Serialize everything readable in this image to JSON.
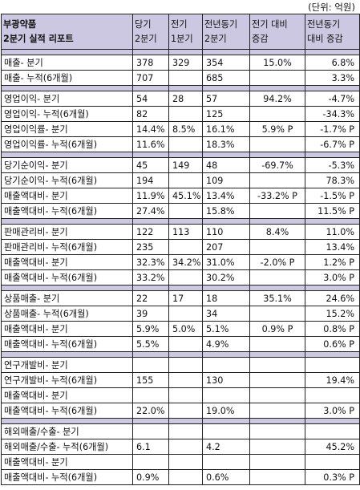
{
  "unit_label": "(단위: 억원)",
  "header": {
    "title_line1": "부광약품",
    "title_line2": "2분기 실적 리포트",
    "col_current_1": "당기",
    "col_current_2": "2분기",
    "col_prev_1": "전기",
    "col_prev_2": "1분기",
    "col_yoy_1": "전년동기",
    "col_yoy_2": "2분기",
    "col_qoq_1": "전기 대비",
    "col_qoq_2": "증감",
    "col_yoyc_1": "전년동기",
    "col_yoyc_2": "대비 증감"
  },
  "groups": [
    {
      "rows": [
        {
          "label": "매출- 분기",
          "cur": "378",
          "prev": "329",
          "yoy": "354",
          "qoq": "15.0%",
          "yoyc": "6.8%"
        },
        {
          "label": "매출- 누적(6개월)",
          "cur": "707",
          "prev": "",
          "yoy": "685",
          "qoq": "",
          "yoyc": "3.3%"
        }
      ]
    },
    {
      "rows": [
        {
          "label": "영업이익- 분기",
          "cur": "54",
          "prev": "28",
          "yoy": "57",
          "qoq": "94.2%",
          "yoyc": "-4.7%"
        },
        {
          "label": "영업이익- 누적(6개월)",
          "cur": "82",
          "prev": "",
          "yoy": "125",
          "qoq": "",
          "yoyc": "-34.3%"
        },
        {
          "label": "영업이익률- 분기",
          "cur": "14.4%",
          "prev": "8.5%",
          "yoy": "16.1%",
          "qoq": "5.9% P",
          "yoyc": "-1.7% P"
        },
        {
          "label": "영업이익률- 누적(6개월)",
          "cur": "11.6%",
          "prev": "",
          "yoy": "18.3%",
          "qoq": "",
          "yoyc": "-6.7% P"
        }
      ]
    },
    {
      "rows": [
        {
          "label": "당기순이익- 분기",
          "cur": "45",
          "prev": "149",
          "yoy": "48",
          "qoq": "-69.7%",
          "yoyc": "-5.3%"
        },
        {
          "label": "당기순이익- 누적(6개월)",
          "cur": "194",
          "prev": "",
          "yoy": "109",
          "qoq": "",
          "yoyc": "78.3%"
        },
        {
          "label": "매출액대비- 분기",
          "cur": "11.9%",
          "prev": "45.1%",
          "yoy": "13.4%",
          "qoq": "-33.2% P",
          "yoyc": "-1.5% P"
        },
        {
          "label": "매출액대비- 누적(6개월)",
          "cur": "27.4%",
          "prev": "",
          "yoy": "15.8%",
          "qoq": "",
          "yoyc": "11.5% P"
        }
      ]
    },
    {
      "rows": [
        {
          "label": "판매관리비- 분기",
          "cur": "122",
          "prev": "113",
          "yoy": "110",
          "qoq": "8.4%",
          "yoyc": "11.0%"
        },
        {
          "label": "판매관리비- 누적(6개월)",
          "cur": "235",
          "prev": "",
          "yoy": "207",
          "qoq": "",
          "yoyc": "13.4%"
        },
        {
          "label": "매출액대비- 분기",
          "cur": "32.3%",
          "prev": "34.2%",
          "yoy": "31.0%",
          "qoq": "-2.0% P",
          "yoyc": "1.2% P"
        },
        {
          "label": "매출액대비- 누적(6개월)",
          "cur": "33.2%",
          "prev": "",
          "yoy": "30.2%",
          "qoq": "",
          "yoyc": "3.0% P"
        }
      ]
    },
    {
      "rows": [
        {
          "label": "상품매출- 분기",
          "cur": "22",
          "prev": "17",
          "yoy": "18",
          "qoq": "35.1%",
          "yoyc": "24.6%"
        },
        {
          "label": "상품매출- 누적(6개월)",
          "cur": "39",
          "prev": "",
          "yoy": "34",
          "qoq": "",
          "yoyc": "15.2%"
        },
        {
          "label": "매출액대비- 분기",
          "cur": "5.9%",
          "prev": "5.0%",
          "yoy": "5.1%",
          "qoq": "0.9% P",
          "yoyc": "0.8% P"
        },
        {
          "label": "매출액대비- 누적(6개월)",
          "cur": "5.5%",
          "prev": "",
          "yoy": "4.9%",
          "qoq": "",
          "yoyc": "0.6% P"
        }
      ]
    },
    {
      "rows": [
        {
          "label": "연구개발비- 분기",
          "cur": "",
          "prev": "",
          "yoy": "",
          "qoq": "",
          "yoyc": ""
        },
        {
          "label": "연구개발비- 누적(6개월)",
          "cur": "155",
          "prev": "",
          "yoy": "130",
          "qoq": "",
          "yoyc": "19.4%"
        },
        {
          "label": "매출액대비- 분기",
          "cur": "",
          "prev": "",
          "yoy": "",
          "qoq": "",
          "yoyc": ""
        },
        {
          "label": "매출액대비- 누적(6개월)",
          "cur": "22.0%",
          "prev": "",
          "yoy": "19.0%",
          "qoq": "",
          "yoyc": "3.0% P"
        }
      ]
    },
    {
      "rows": [
        {
          "label": "해외매출/수출- 분기",
          "cur": "",
          "prev": "",
          "yoy": "",
          "qoq": "",
          "yoyc": ""
        },
        {
          "label": "해외매출/수출- 누적(6개월)",
          "cur": "6.1",
          "prev": "",
          "yoy": "4.2",
          "qoq": "",
          "yoyc": "45.2%"
        },
        {
          "label": "매출액대비- 분기",
          "cur": "",
          "prev": "",
          "yoy": "",
          "qoq": "",
          "yoyc": ""
        },
        {
          "label": "매출액대비- 누적(6개월)",
          "cur": "0.9%",
          "prev": "",
          "yoy": "0.6%",
          "qoq": "",
          "yoyc": "0.3% P"
        }
      ]
    }
  ]
}
